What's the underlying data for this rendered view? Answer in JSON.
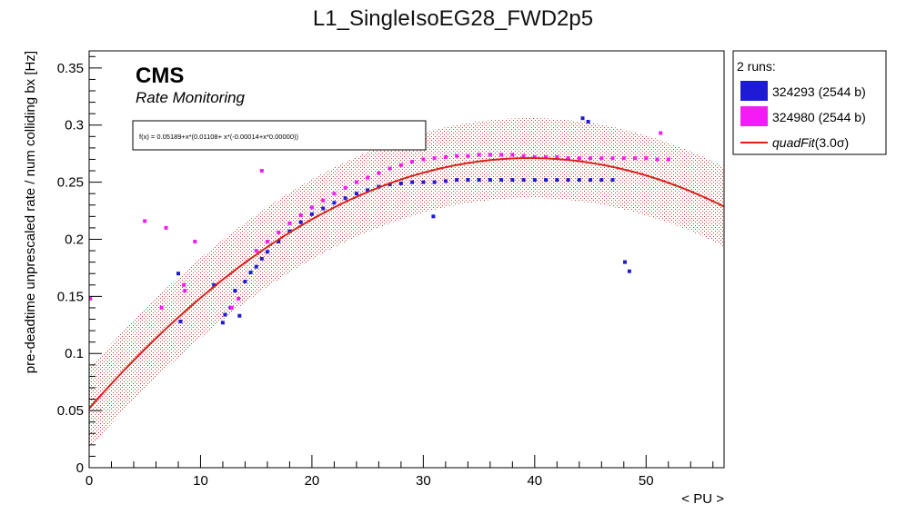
{
  "chart_data": {
    "type": "scatter",
    "title": "L1_SingleIsoEG28_FWD2p5",
    "xlabel": "< PU >",
    "ylabel": "pre-deadtime unprescaled rate / num colliding bx [Hz]",
    "xlim": [
      0,
      57
    ],
    "ylim": [
      0,
      0.365
    ],
    "x_ticks": [
      "0",
      "10",
      "20",
      "30",
      "40",
      "50"
    ],
    "y_ticks": [
      "0",
      "0.05",
      "0.1",
      "0.15",
      "0.2",
      "0.25",
      "0.3",
      "0.35"
    ],
    "grid": false,
    "legend_position": "right",
    "legend_header": "2 runs:",
    "cms_label": "CMS",
    "cms_sublabel": "Rate Monitoring",
    "fit_formula": "f(x) = 0.05189+x*(0.01108+ x*(-0.00014+x*0.00000))",
    "fit": {
      "name": "quadFit(3.0σ)",
      "legend_name": "quadFit",
      "legend_suffix": "(3.0σ)",
      "coefficients": [
        0.05189,
        0.01108,
        -0.00014
      ],
      "x_range": [
        0,
        57
      ],
      "band_halfwidth": 0.035,
      "color": "#d9201a"
    },
    "series": [
      {
        "name": "324293 (2544 b)",
        "color": "#1d1bd3",
        "points": [
          [
            12,
            0.127
          ],
          [
            12.2,
            0.134
          ],
          [
            12.7,
            0.14
          ],
          [
            13.1,
            0.155
          ],
          [
            13.5,
            0.133
          ],
          [
            11.2,
            0.16
          ],
          [
            8,
            0.17
          ],
          [
            8.2,
            0.128
          ],
          [
            30.9,
            0.22
          ],
          [
            44.3,
            0.306
          ],
          [
            44.8,
            0.303
          ],
          [
            48.1,
            0.18
          ],
          [
            48.5,
            0.172
          ],
          [
            14,
            0.163
          ],
          [
            14.5,
            0.171
          ],
          [
            15,
            0.176
          ],
          [
            15.5,
            0.183
          ],
          [
            16,
            0.189
          ],
          [
            17,
            0.198
          ],
          [
            18,
            0.207
          ],
          [
            19,
            0.215
          ],
          [
            20,
            0.222
          ],
          [
            21,
            0.227
          ],
          [
            22,
            0.232
          ],
          [
            23,
            0.236
          ],
          [
            24,
            0.24
          ],
          [
            25,
            0.243
          ],
          [
            26,
            0.246
          ],
          [
            27,
            0.248
          ],
          [
            28,
            0.249
          ],
          [
            29,
            0.25
          ],
          [
            30,
            0.25
          ],
          [
            31,
            0.25
          ],
          [
            32,
            0.251
          ],
          [
            33,
            0.252
          ],
          [
            34,
            0.252
          ],
          [
            35,
            0.252
          ],
          [
            36,
            0.252
          ],
          [
            37,
            0.252
          ],
          [
            38,
            0.252
          ],
          [
            39,
            0.252
          ],
          [
            40,
            0.252
          ],
          [
            41,
            0.252
          ],
          [
            42,
            0.252
          ],
          [
            43,
            0.252
          ],
          [
            44,
            0.252
          ],
          [
            45,
            0.252
          ],
          [
            46,
            0.252
          ],
          [
            47,
            0.252
          ]
        ]
      },
      {
        "name": "324980 (2544 b)",
        "color": "#f51bf5",
        "points": [
          [
            5,
            0.216
          ],
          [
            6.9,
            0.21
          ],
          [
            9.5,
            0.198
          ],
          [
            8.5,
            0.16
          ],
          [
            8.6,
            0.155
          ],
          [
            6.5,
            0.14
          ],
          [
            12.8,
            0.14
          ],
          [
            13.4,
            0.148
          ],
          [
            15.5,
            0.26
          ],
          [
            0.1,
            0.148
          ],
          [
            51.3,
            0.293
          ],
          [
            15,
            0.19
          ],
          [
            16,
            0.198
          ],
          [
            17,
            0.206
          ],
          [
            18,
            0.214
          ],
          [
            19,
            0.221
          ],
          [
            20,
            0.228
          ],
          [
            21,
            0.234
          ],
          [
            22,
            0.24
          ],
          [
            23,
            0.245
          ],
          [
            24,
            0.25
          ],
          [
            25,
            0.254
          ],
          [
            26,
            0.258
          ],
          [
            27,
            0.262
          ],
          [
            28,
            0.265
          ],
          [
            29,
            0.268
          ],
          [
            30,
            0.27
          ],
          [
            31,
            0.271
          ],
          [
            32,
            0.272
          ],
          [
            33,
            0.273
          ],
          [
            34,
            0.273
          ],
          [
            35,
            0.274
          ],
          [
            36,
            0.274
          ],
          [
            37,
            0.274
          ],
          [
            38,
            0.274
          ],
          [
            39,
            0.273
          ],
          [
            40,
            0.272
          ],
          [
            41,
            0.272
          ],
          [
            42,
            0.272
          ],
          [
            43,
            0.271
          ],
          [
            44,
            0.271
          ],
          [
            45,
            0.271
          ],
          [
            46,
            0.271
          ],
          [
            47,
            0.271
          ],
          [
            48,
            0.271
          ],
          [
            49,
            0.271
          ],
          [
            50,
            0.271
          ],
          [
            51,
            0.27
          ],
          [
            52,
            0.27
          ]
        ]
      }
    ]
  }
}
